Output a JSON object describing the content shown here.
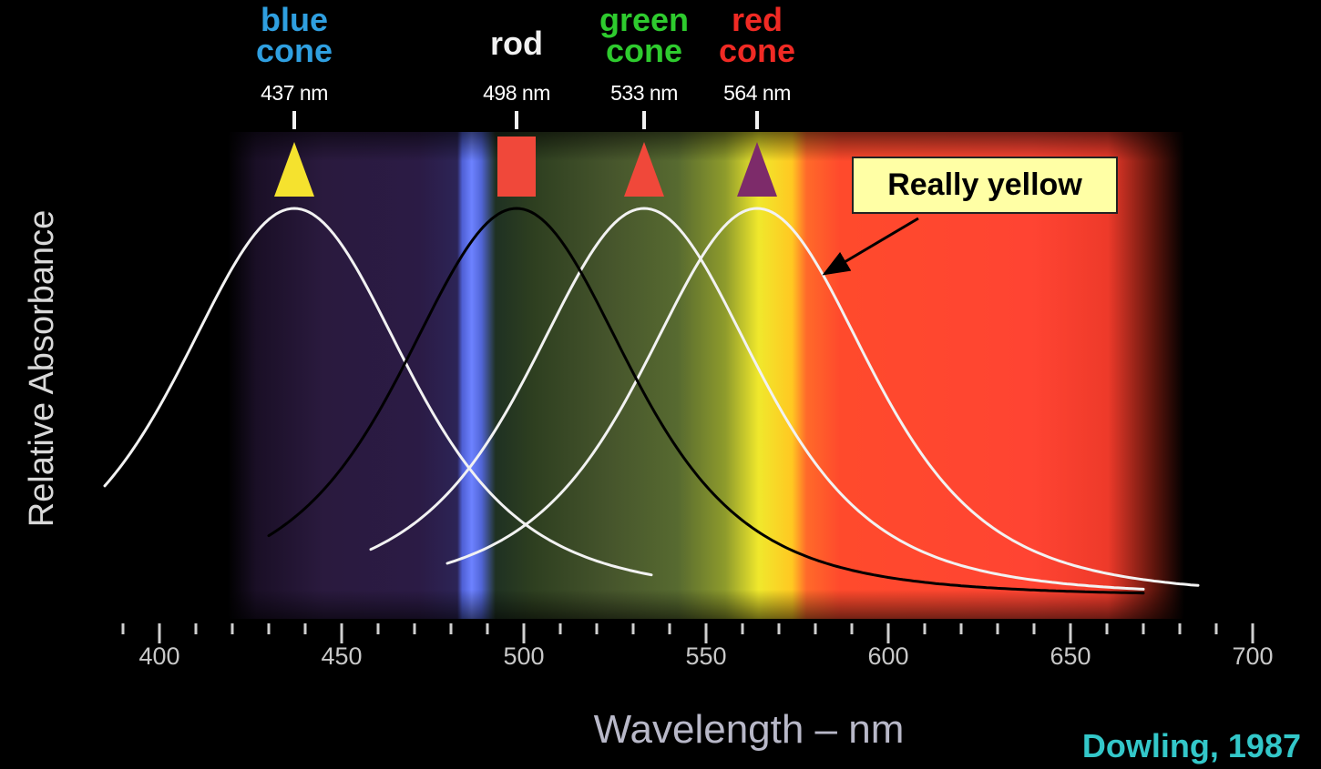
{
  "chart_data": {
    "type": "line",
    "title": "",
    "xlabel": "Wavelength – nm",
    "ylabel": "Relative Absorbance",
    "xlim": [
      385,
      705
    ],
    "ylim": [
      0,
      1
    ],
    "xticks": [
      400,
      450,
      500,
      550,
      600,
      650,
      700
    ],
    "grid": false,
    "series": [
      {
        "name": "blue cone",
        "name_lines": [
          "blue",
          "cone"
        ],
        "peak": 437,
        "peak_label": "437 nm",
        "color": "#2f9fe0",
        "line_color": "#f2f2f2",
        "x_start": 385,
        "x_end": 535,
        "marker": "triangle",
        "marker_color": "#f5e22e"
      },
      {
        "name": "rod",
        "name_lines": [
          "rod"
        ],
        "peak": 498,
        "peak_label": "498 nm",
        "color": "#f2f2f2",
        "line_color": "#000000",
        "x_start": 430,
        "x_end": 670,
        "marker": "square",
        "marker_color": "#f0483a"
      },
      {
        "name": "green cone",
        "name_lines": [
          "green",
          "cone"
        ],
        "peak": 533,
        "peak_label": "533 nm",
        "color": "#2ecb2e",
        "line_color": "#f2f2f2",
        "x_start": 458,
        "x_end": 670,
        "marker": "triangle",
        "marker_color": "#f0483a"
      },
      {
        "name": "red cone",
        "name_lines": [
          "red",
          "cone"
        ],
        "peak": 564,
        "peak_label": "564 nm",
        "color": "#f02a24",
        "line_color": "#f2f2f2",
        "x_start": 479,
        "x_end": 685,
        "marker": "triangle",
        "marker_color": "#7d2b6a"
      }
    ],
    "annotations": [
      {
        "text": "Really yellow",
        "x": 582,
        "box_color": "#ffffa5"
      }
    ]
  },
  "credit": "Dowling, 1987"
}
